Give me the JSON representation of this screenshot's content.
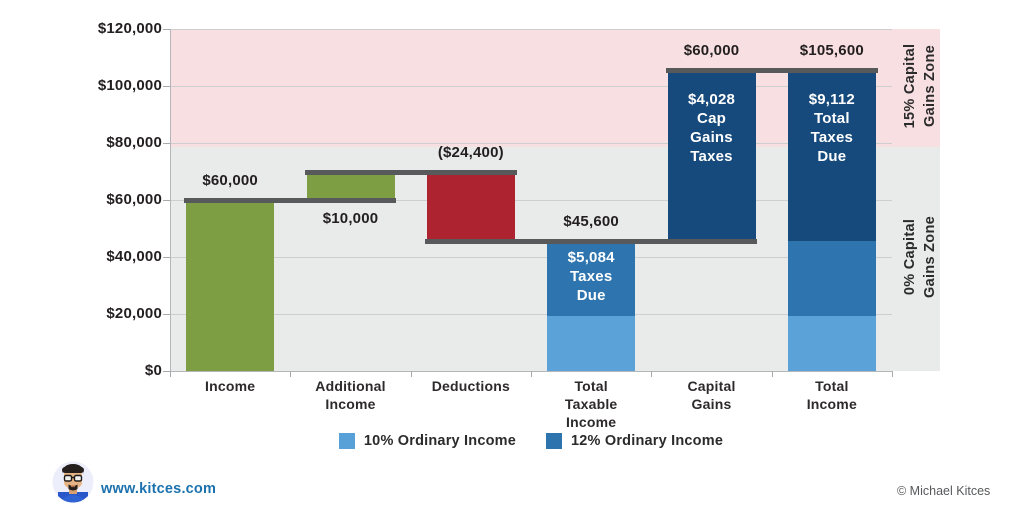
{
  "chart_data": {
    "type": "bar",
    "subtype": "waterfall",
    "ymin": 0,
    "ymax": 120000,
    "y_tick_step": 20000,
    "y_tick_labels": [
      "$0",
      "$20,000",
      "$40,000",
      "$60,000",
      "$80,000",
      "$100,000",
      "$120,000"
    ],
    "grid": true,
    "categories": [
      "Income",
      "Additional Income",
      "Deductions",
      "Total Taxable Income",
      "Capital Gains",
      "Total Income"
    ],
    "category_label_lines": [
      [
        "Income"
      ],
      [
        "Additional",
        "Income"
      ],
      [
        "Deductions"
      ],
      [
        "Total",
        "Taxable",
        "Income"
      ],
      [
        "Capital",
        "Gains"
      ],
      [
        "Total",
        "Income"
      ]
    ],
    "bars": [
      {
        "name": "income",
        "label": "$60,000",
        "label_position": "above",
        "segments": [
          {
            "from": 0,
            "to": 60000,
            "color": "#7d9e42"
          }
        ]
      },
      {
        "name": "additional-income",
        "label": "$10,000",
        "label_position": "below",
        "segments": [
          {
            "from": 60000,
            "to": 70000,
            "color": "#7d9e42"
          }
        ]
      },
      {
        "name": "deductions",
        "label": "($24,400)",
        "label_position": "above",
        "segments": [
          {
            "from": 45600,
            "to": 70000,
            "color": "#ad2330"
          }
        ]
      },
      {
        "name": "total-taxable-income",
        "label": "$45,600",
        "label_position": "above",
        "segments": [
          {
            "from": 0,
            "to": 19400,
            "color": "#5ba2d9"
          },
          {
            "from": 19400,
            "to": 45600,
            "color": "#2e74ae"
          }
        ],
        "inner_label_lines": [
          "$5,084",
          "Taxes",
          "Due"
        ]
      },
      {
        "name": "capital-gains",
        "label": "$60,000",
        "label_position": "above",
        "segments": [
          {
            "from": 45600,
            "to": 105600,
            "color": "#164a7c"
          }
        ],
        "inner_label_lines": [
          "$4,028",
          "Cap",
          "Gains",
          "Taxes"
        ]
      },
      {
        "name": "total-income",
        "label": "$105,600",
        "label_position": "above",
        "segments": [
          {
            "from": 0,
            "to": 19400,
            "color": "#5ba2d9"
          },
          {
            "from": 19400,
            "to": 45600,
            "color": "#2e74ae"
          },
          {
            "from": 45600,
            "to": 105600,
            "color": "#164a7c"
          }
        ],
        "inner_label_lines": [
          "$9,112",
          "Total",
          "Taxes",
          "Due"
        ]
      }
    ],
    "connectors": [
      {
        "value": 60000,
        "from_bar": 0,
        "to_bar": 1
      },
      {
        "value": 70000,
        "from_bar": 1,
        "to_bar": 2
      },
      {
        "value": 45600,
        "from_bar": 2,
        "to_bar": 4
      },
      {
        "value": 105600,
        "from_bar": 4,
        "to_bar": 5
      }
    ],
    "zones": [
      {
        "label_lines": [
          "15% Capital",
          "Gains Zone"
        ],
        "from": 78750,
        "to": 120000,
        "color": "#f8dfe2"
      },
      {
        "label_lines": [
          "0% Capital",
          "Gains Zone"
        ],
        "from": 0,
        "to": 78750,
        "color": "#e9eaea"
      }
    ],
    "legend": [
      {
        "label": "10% Ordinary Income",
        "color": "#57a1d8"
      },
      {
        "label": "12% Ordinary Income",
        "color": "#2d73ad"
      }
    ],
    "legend_position": "bottom-center"
  },
  "footer": {
    "site": "www.kitces.com",
    "copyright": "© Michael Kitces"
  }
}
